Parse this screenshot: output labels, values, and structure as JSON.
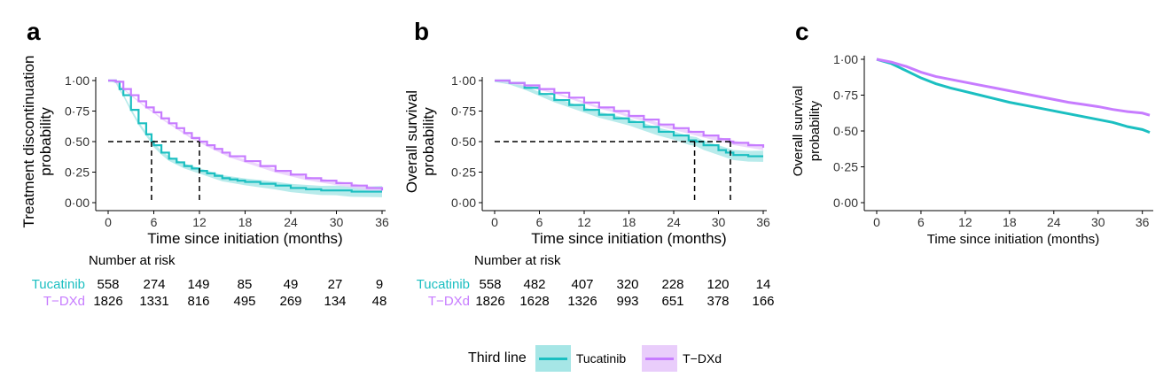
{
  "colors": {
    "tucatinib": "#1bbfc1",
    "tdxd": "#c77cff",
    "tucatinib_band": "#a6e6e6",
    "tdxd_band": "#e9cdfb"
  },
  "chart_data": [
    {
      "id": "a",
      "panel_label": "a",
      "type": "line",
      "ylabel_line1": "Treatment discontinuation",
      "ylabel_line2": "probability",
      "xlabel": "Time since initiation (months)",
      "xticks": [
        "0",
        "6",
        "12",
        "18",
        "24",
        "30",
        "36"
      ],
      "yticks": [
        "0·00",
        "0·25",
        "0·50",
        "0·75",
        "1·00"
      ],
      "xlim": [
        0,
        36
      ],
      "ylim": [
        0,
        1
      ],
      "series": [
        {
          "name": "Tucatinib",
          "x": [
            0,
            0.5,
            1,
            1.5,
            2,
            3,
            4,
            5,
            5.7,
            6,
            7,
            8,
            9,
            10,
            11,
            12,
            13,
            14,
            15,
            16,
            17,
            18,
            20,
            22,
            24,
            26,
            28,
            30,
            32,
            34,
            36
          ],
          "y": [
            1,
            1,
            0.99,
            0.93,
            0.88,
            0.76,
            0.65,
            0.56,
            0.5,
            0.47,
            0.41,
            0.36,
            0.33,
            0.3,
            0.28,
            0.26,
            0.24,
            0.22,
            0.2,
            0.19,
            0.18,
            0.17,
            0.155,
            0.14,
            0.12,
            0.11,
            0.1,
            0.1,
            0.09,
            0.09,
            0.09
          ]
        },
        {
          "name": "T-DXd",
          "x": [
            0,
            0.5,
            1,
            2,
            3,
            4,
            5,
            6,
            7,
            8,
            9,
            10,
            11,
            12,
            13,
            14,
            15,
            16,
            18,
            20,
            22,
            24,
            26,
            28,
            30,
            32,
            34,
            36
          ],
          "y": [
            1,
            1,
            0.99,
            0.93,
            0.88,
            0.83,
            0.78,
            0.74,
            0.69,
            0.65,
            0.61,
            0.57,
            0.53,
            0.5,
            0.47,
            0.44,
            0.41,
            0.38,
            0.34,
            0.3,
            0.26,
            0.23,
            0.2,
            0.18,
            0.16,
            0.14,
            0.12,
            0.1
          ]
        }
      ],
      "ref_lines": {
        "y": 0.5,
        "x": [
          5.7,
          12
        ]
      },
      "risk_table": {
        "title": "Number at risk",
        "rows": [
          {
            "name": "Tucatinib",
            "values": [
              "558",
              "274",
              "149",
              "85",
              "49",
              "27",
              "9"
            ]
          },
          {
            "name": "T−DXd",
            "values": [
              "1826",
              "1331",
              "816",
              "495",
              "269",
              "134",
              "48"
            ]
          }
        ]
      }
    },
    {
      "id": "b",
      "panel_label": "b",
      "type": "line",
      "ylabel_line1": "Overall survival",
      "ylabel_line2": "probability",
      "xlabel": "Time since initiation (months)",
      "xticks": [
        "0",
        "6",
        "12",
        "18",
        "24",
        "30",
        "36"
      ],
      "yticks": [
        "0·00",
        "0·25",
        "0·50",
        "0·75",
        "1·00"
      ],
      "xlim": [
        0,
        36
      ],
      "ylim": [
        0,
        1
      ],
      "series": [
        {
          "name": "Tucatinib",
          "x": [
            0,
            2,
            4,
            6,
            8,
            10,
            12,
            14,
            16,
            18,
            20,
            22,
            24,
            26,
            27,
            28,
            30,
            31,
            32,
            34,
            36
          ],
          "y": [
            1,
            0.98,
            0.94,
            0.89,
            0.84,
            0.8,
            0.76,
            0.72,
            0.69,
            0.66,
            0.62,
            0.58,
            0.55,
            0.51,
            0.5,
            0.47,
            0.43,
            0.41,
            0.39,
            0.38,
            0.38
          ]
        },
        {
          "name": "T-DXd",
          "x": [
            0,
            2,
            4,
            6,
            8,
            10,
            12,
            14,
            16,
            18,
            20,
            22,
            24,
            26,
            28,
            30,
            31.5,
            32,
            34,
            36
          ],
          "y": [
            1,
            0.98,
            0.96,
            0.93,
            0.9,
            0.86,
            0.82,
            0.78,
            0.75,
            0.71,
            0.68,
            0.64,
            0.61,
            0.58,
            0.55,
            0.52,
            0.5,
            0.49,
            0.47,
            0.45
          ]
        }
      ],
      "ref_lines": {
        "y": 0.5,
        "x": [
          26.8,
          31.6
        ]
      },
      "risk_table": {
        "title": "Number at risk",
        "rows": [
          {
            "name": "Tucatinib",
            "values": [
              "558",
              "482",
              "407",
              "320",
              "228",
              "120",
              "14"
            ]
          },
          {
            "name": "T−DXd",
            "values": [
              "1826",
              "1628",
              "1326",
              "993",
              "651",
              "378",
              "166"
            ]
          }
        ]
      }
    },
    {
      "id": "c",
      "panel_label": "c",
      "type": "line",
      "ylabel_line1": "Overall survival",
      "ylabel_line2": "probability",
      "xlabel": "Time since initiation (months)",
      "xticks": [
        "0",
        "6",
        "12",
        "18",
        "24",
        "30",
        "36"
      ],
      "yticks": [
        "0·00",
        "0·25",
        "0·50",
        "0·75",
        "1·00"
      ],
      "xlim": [
        0,
        37
      ],
      "ylim": [
        0,
        1
      ],
      "series": [
        {
          "name": "Tucatinib",
          "x": [
            0,
            2,
            4,
            6,
            8,
            10,
            12,
            14,
            16,
            18,
            20,
            22,
            24,
            26,
            28,
            30,
            32,
            34,
            36,
            37
          ],
          "y": [
            1,
            0.97,
            0.92,
            0.87,
            0.83,
            0.8,
            0.775,
            0.75,
            0.725,
            0.7,
            0.68,
            0.66,
            0.64,
            0.62,
            0.6,
            0.58,
            0.56,
            0.53,
            0.51,
            0.49
          ]
        },
        {
          "name": "T-DXd",
          "x": [
            0,
            2,
            4,
            6,
            8,
            10,
            12,
            14,
            16,
            18,
            20,
            22,
            24,
            26,
            28,
            30,
            32,
            34,
            36,
            37
          ],
          "y": [
            1,
            0.98,
            0.95,
            0.91,
            0.88,
            0.86,
            0.84,
            0.82,
            0.8,
            0.78,
            0.76,
            0.74,
            0.72,
            0.7,
            0.685,
            0.67,
            0.65,
            0.635,
            0.625,
            0.61
          ]
        }
      ]
    }
  ],
  "legend": {
    "title": "Third line",
    "items": [
      {
        "key": "tucatinib",
        "label": "Tucatinib"
      },
      {
        "key": "tdxd",
        "label": "T−DXd"
      }
    ]
  }
}
